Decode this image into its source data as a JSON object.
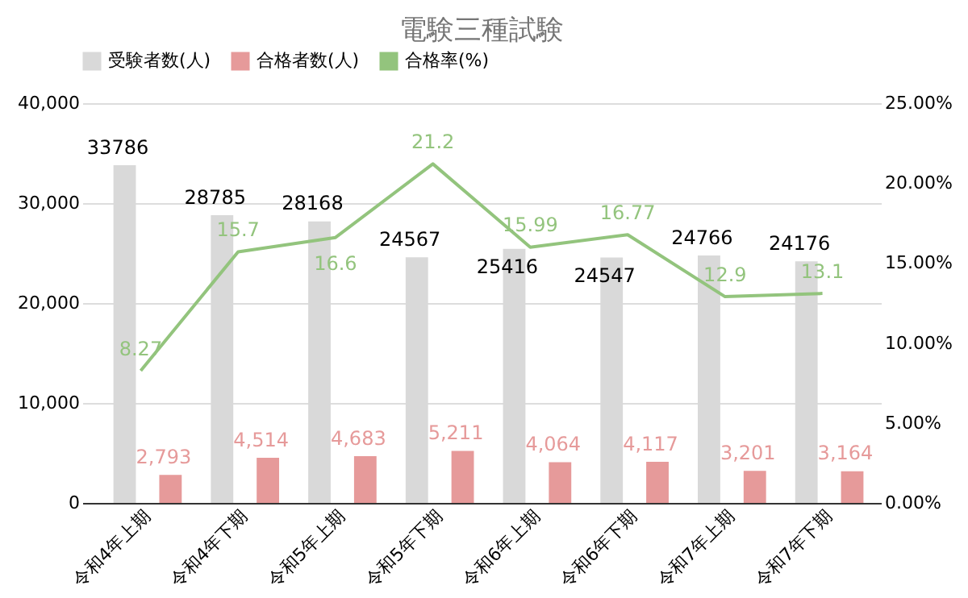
{
  "chart_data": {
    "type": "bar",
    "title": "電験三種試験",
    "categories": [
      "令和4年上期",
      "令和4年下期",
      "令和5年上期",
      "令和5年下期",
      "令和6年上期",
      "令和6年下期",
      "令和7年上期",
      "令和7年下期"
    ],
    "series": [
      {
        "name": "受験者数(人)",
        "color": "#d9d9d9",
        "values": [
          33786,
          28785,
          28168,
          24567,
          25416,
          24547,
          24766,
          24176
        ],
        "value_labels": [
          "33786",
          "28785",
          "28168",
          "24567",
          "25416",
          "24547",
          "24766",
          "24176"
        ]
      },
      {
        "name": "合格者数(人)",
        "color": "#e69a9a",
        "values": [
          2793,
          4514,
          4683,
          5211,
          4064,
          4117,
          3201,
          3164
        ],
        "value_labels": [
          "2,793",
          "4,514",
          "4,683",
          "5,211",
          "4,064",
          "4,117",
          "3,201",
          "3,164"
        ]
      },
      {
        "name": "合格率(%)",
        "type": "line",
        "axis": "y2",
        "color": "#93c47d",
        "values": [
          8.27,
          15.7,
          16.6,
          21.2,
          15.99,
          16.77,
          12.9,
          13.1
        ],
        "value_labels": [
          "8.27",
          "15.7",
          "16.6",
          "21.2",
          "15.99",
          "16.77",
          "12.9",
          "13.1"
        ]
      }
    ],
    "ylim": [
      0,
      40000
    ],
    "yticks": [
      0,
      {
        "value": 10000,
        "label": "10,000"
      },
      {
        "value": 20000,
        "label": "20,000"
      },
      {
        "value": 30000,
        "label": "30,000"
      },
      {
        "value": 40000,
        "label": "40,000"
      }
    ],
    "y2lim": [
      0,
      25
    ],
    "y2ticks": [
      {
        "value": 0,
        "label": "0.00%"
      },
      {
        "value": 5,
        "label": "5.00%"
      },
      {
        "value": 10,
        "label": "10.00%"
      },
      {
        "value": 15,
        "label": "15.00%"
      },
      {
        "value": 20,
        "label": "20.00%"
      },
      {
        "value": 25,
        "label": "25.00%"
      }
    ],
    "grid": "y",
    "legend": "top"
  }
}
